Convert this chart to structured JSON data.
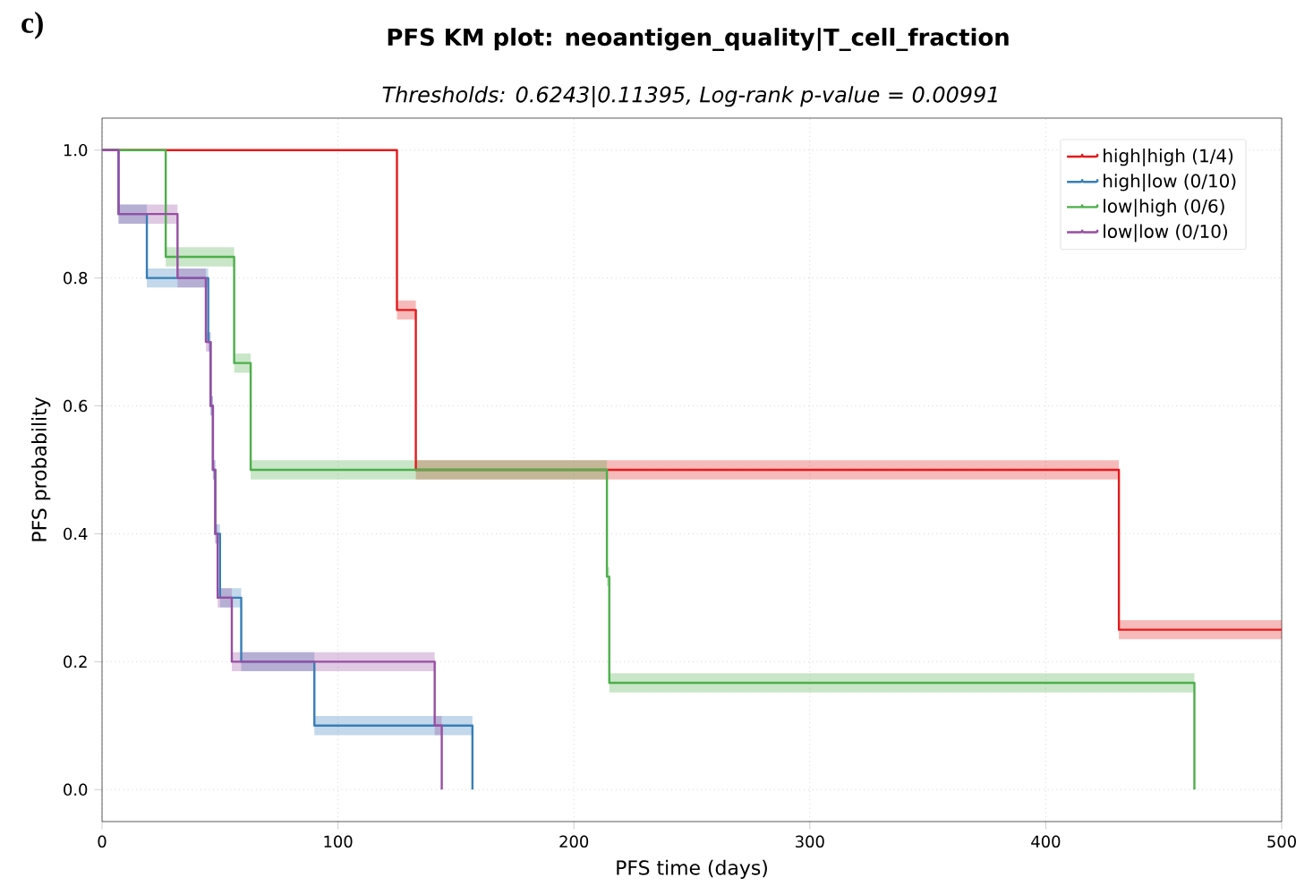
{
  "chart_data": {
    "type": "step",
    "title": "PFS KM plot: neoantigen_quality|T_cell_fraction",
    "subtitle": "Thresholds: 0.6243|0.11395, Log-rank p-value = 0.00991",
    "xlabel": "PFS time (days)",
    "ylabel": "PFS probability",
    "annotations": [
      "c)"
    ],
    "xlim": [
      0,
      500
    ],
    "ylim": [
      -0.05,
      1.05
    ],
    "xticks": [
      0,
      100,
      200,
      300,
      400,
      500
    ],
    "yticks": [
      {
        "value": 0,
        "label": "0.0"
      },
      {
        "value": 0.2,
        "label": "0.2"
      },
      {
        "value": 0.4,
        "label": "0.4"
      },
      {
        "value": 0.6,
        "label": "0.6"
      },
      {
        "value": 0.8,
        "label": "0.8"
      },
      {
        "value": 1,
        "label": "1.0"
      }
    ],
    "grid": true,
    "legend": "top right",
    "series": [
      {
        "name": "high|high (1/4)",
        "color": "#e41a1c",
        "x": [
          0,
          125,
          133,
          431,
          500
        ],
        "values": [
          1,
          0.75,
          0.5,
          0.25,
          0.25
        ],
        "lower": [
          1,
          0.735,
          0.485,
          0.235,
          0.235
        ],
        "upper": [
          1,
          0.765,
          0.515,
          0.265,
          0.265
        ]
      },
      {
        "name": "high|low (0/10)",
        "color": "#377eb8",
        "x": [
          0,
          7,
          19,
          45,
          46,
          47,
          48,
          50,
          59,
          90,
          157
        ],
        "values": [
          1,
          0.9,
          0.8,
          0.7,
          0.6,
          0.5,
          0.4,
          0.3,
          0.2,
          0.1,
          0
        ],
        "lower": [
          1,
          0.885,
          0.785,
          0.685,
          0.585,
          0.485,
          0.385,
          0.285,
          0.185,
          0.085,
          0.085
        ],
        "upper": [
          1,
          0.915,
          0.815,
          0.715,
          0.615,
          0.515,
          0.415,
          0.315,
          0.215,
          0.115,
          0.115
        ]
      },
      {
        "name": "low|high (0/6)",
        "color": "#4daf4a",
        "x": [
          0,
          27,
          56,
          63,
          214,
          215,
          463
        ],
        "values": [
          1,
          0.833,
          0.667,
          0.5,
          0.333,
          0.167,
          0
        ],
        "lower": [
          1,
          0.818,
          0.652,
          0.485,
          0.318,
          0.152,
          0.152
        ],
        "upper": [
          1,
          0.848,
          0.682,
          0.515,
          0.348,
          0.182,
          0.182
        ]
      },
      {
        "name": "low|low (0/10)",
        "color": "#984ea3",
        "x": [
          0,
          7,
          32,
          44,
          46,
          47,
          48,
          49,
          55,
          141,
          144
        ],
        "values": [
          1,
          0.9,
          0.8,
          0.7,
          0.6,
          0.5,
          0.4,
          0.3,
          0.2,
          0.1,
          0
        ],
        "lower": [
          1,
          0.885,
          0.785,
          0.685,
          0.585,
          0.485,
          0.385,
          0.285,
          0.185,
          0.085,
          0.085
        ],
        "upper": [
          1,
          0.915,
          0.815,
          0.715,
          0.615,
          0.515,
          0.415,
          0.315,
          0.215,
          0.115,
          0.115
        ]
      }
    ]
  }
}
